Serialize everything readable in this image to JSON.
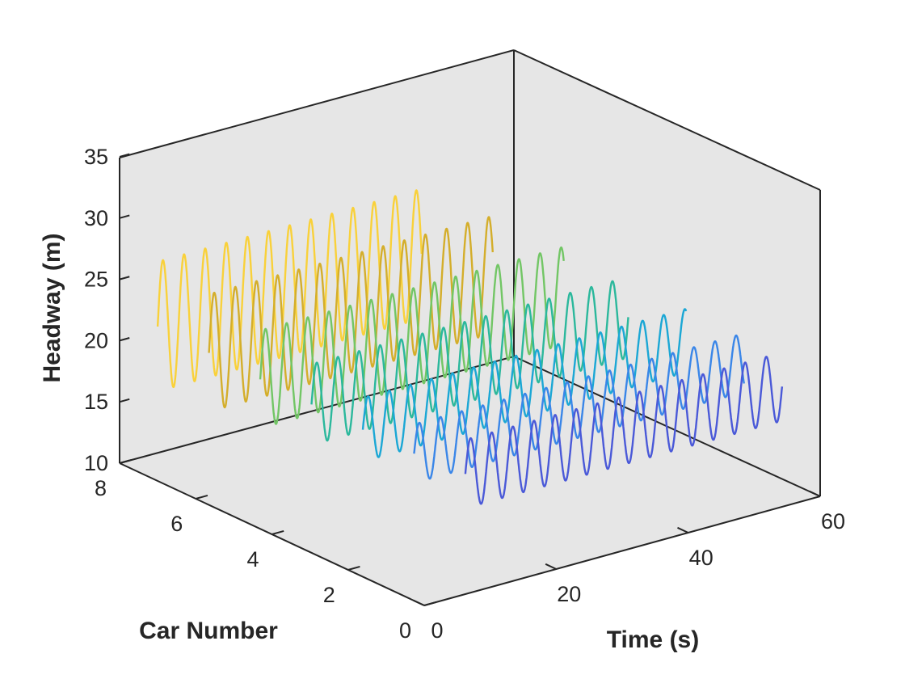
{
  "chart_data": {
    "type": "line",
    "projection": "3d",
    "title": "",
    "xlabel": "Time (s)",
    "ylabel": "Car Number",
    "zlabel": "Headway (m)",
    "xlim": [
      0,
      60
    ],
    "ylim": [
      0,
      8
    ],
    "zlim": [
      10,
      35
    ],
    "xticks": [
      "0",
      "20",
      "40",
      "60"
    ],
    "yticks": [
      "0",
      "2",
      "4",
      "6",
      "8"
    ],
    "zticks": [
      "10",
      "15",
      "20",
      "25",
      "30",
      "35"
    ],
    "grid": false,
    "box": true,
    "series": [
      {
        "car": 7,
        "color": "#F9D13A",
        "t_start": 0.0,
        "t_end": 40.0,
        "base": 22.6,
        "amplitude": 5.3,
        "period": 3.2
      },
      {
        "car": 6,
        "color": "#D4AE2B",
        "t_start": 2.0,
        "t_end": 45.0,
        "base": 21.6,
        "amplitude": 4.8,
        "period": 3.2
      },
      {
        "car": 5,
        "color": "#72C665",
        "t_start": 4.0,
        "t_end": 50.0,
        "base": 20.6,
        "amplitude": 4.0,
        "period": 3.2
      },
      {
        "car": 4,
        "color": "#2BB89C",
        "t_start": 6.0,
        "t_end": 54.0,
        "base": 19.7,
        "amplitude": 3.3,
        "period": 3.2
      },
      {
        "car": 3,
        "color": "#1BA7D5",
        "t_start": 8.0,
        "t_end": 57.0,
        "base": 18.8,
        "amplitude": 2.6,
        "period": 3.2
      },
      {
        "car": 2,
        "color": "#3A86E8",
        "t_start": 10.0,
        "t_end": 60.0,
        "base": 18.0,
        "amplitude": 2.4,
        "period": 3.2
      },
      {
        "car": 1,
        "color": "#4A59D8",
        "t_start": 12.0,
        "t_end": 60.0,
        "base": 17.5,
        "amplitude": 2.8,
        "period": 3.2
      }
    ]
  }
}
